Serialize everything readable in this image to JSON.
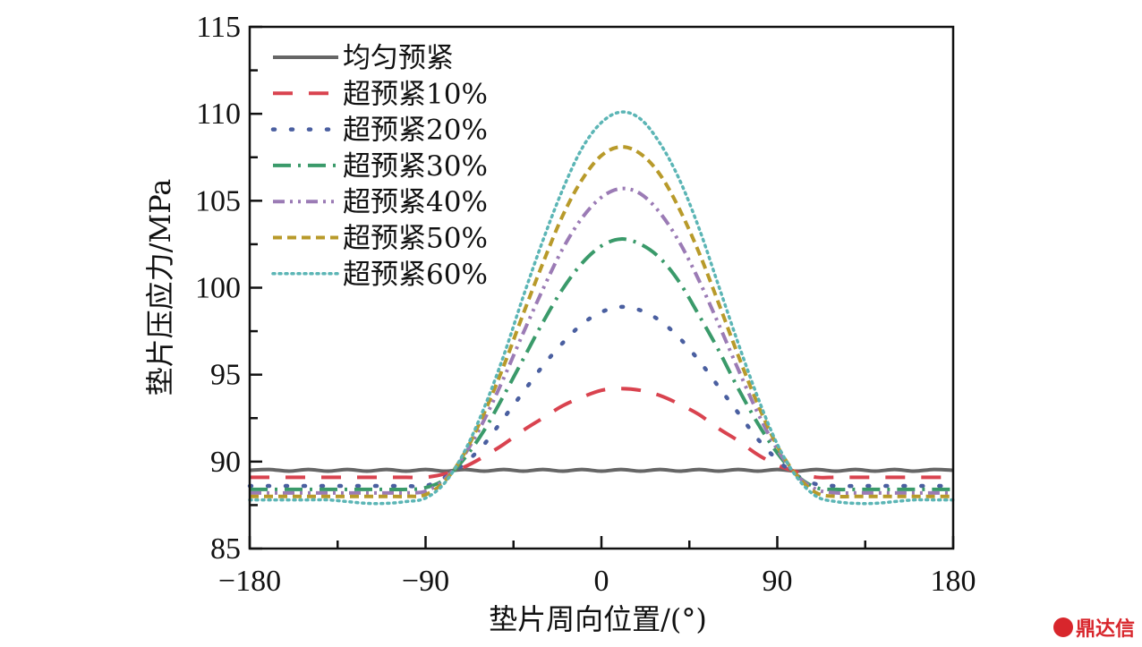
{
  "chart_data": {
    "type": "line",
    "title": "",
    "xlabel": "垫片周向位置/(°)",
    "ylabel": "垫片压应力/MPa",
    "xlim": [
      -180,
      180
    ],
    "ylim": [
      85,
      115
    ],
    "xticks": [
      -180,
      -90,
      0,
      90,
      180
    ],
    "xtick_labels": [
      "−180",
      "−90",
      "0",
      "90",
      "180"
    ],
    "xminor_step": 45,
    "yticks": [
      85,
      90,
      95,
      100,
      105,
      110,
      115
    ],
    "ytick_labels": [
      "85",
      "90",
      "95",
      "100",
      "105",
      "110",
      "115"
    ],
    "yminor_step": 2.5,
    "grid": false,
    "legend_position": "top-left",
    "x": [
      -180,
      -170,
      -160,
      -150,
      -140,
      -130,
      -120,
      -110,
      -100,
      -90,
      -80,
      -70,
      -60,
      -50,
      -40,
      -30,
      -20,
      -10,
      0,
      10,
      20,
      30,
      40,
      50,
      60,
      70,
      80,
      90,
      100,
      110,
      120,
      130,
      140,
      150,
      160,
      170,
      180
    ],
    "series": [
      {
        "name": "均匀预紧",
        "color": "#666666",
        "dash": "",
        "width": 4,
        "values": [
          89.5,
          89.55,
          89.45,
          89.55,
          89.45,
          89.55,
          89.45,
          89.55,
          89.45,
          89.55,
          89.45,
          89.55,
          89.45,
          89.55,
          89.45,
          89.55,
          89.45,
          89.55,
          89.45,
          89.55,
          89.45,
          89.55,
          89.45,
          89.55,
          89.45,
          89.55,
          89.45,
          89.55,
          89.45,
          89.55,
          89.45,
          89.55,
          89.45,
          89.55,
          89.45,
          89.55,
          89.5
        ]
      },
      {
        "name": "超预紧10%",
        "color": "#d9434f",
        "dash": "22,18",
        "width": 4,
        "values": [
          89.1,
          89.1,
          89.1,
          89.1,
          89.1,
          89.1,
          89.1,
          89.1,
          89.1,
          89.1,
          89.3,
          89.7,
          90.3,
          91.0,
          91.8,
          92.5,
          93.2,
          93.7,
          94.1,
          94.2,
          94.1,
          93.8,
          93.3,
          92.7,
          91.9,
          91.2,
          90.4,
          89.8,
          89.4,
          89.1,
          89.1,
          89.1,
          89.1,
          89.1,
          89.1,
          89.1,
          89.1
        ]
      },
      {
        "name": "超预紧20%",
        "color": "#4a5fa0",
        "dash": "2,18",
        "width": 4.5,
        "values": [
          88.6,
          88.6,
          88.6,
          88.6,
          88.6,
          88.6,
          88.6,
          88.6,
          88.6,
          88.6,
          89.1,
          89.9,
          91.0,
          92.5,
          94.0,
          95.5,
          96.8,
          97.9,
          98.6,
          98.9,
          98.7,
          98.1,
          97.1,
          95.8,
          94.3,
          92.8,
          91.3,
          90.1,
          89.2,
          88.7,
          88.6,
          88.6,
          88.6,
          88.6,
          88.6,
          88.6,
          88.6
        ]
      },
      {
        "name": "超预紧30%",
        "color": "#3a9a6a",
        "dash": "20,8,3,8",
        "width": 4,
        "values": [
          88.4,
          88.4,
          88.4,
          88.4,
          88.4,
          88.4,
          88.4,
          88.4,
          88.4,
          88.5,
          89.0,
          90.2,
          91.8,
          93.8,
          95.9,
          98.0,
          99.9,
          101.4,
          102.4,
          102.8,
          102.5,
          101.7,
          100.3,
          98.4,
          96.4,
          94.2,
          92.2,
          90.5,
          89.2,
          88.5,
          88.4,
          88.4,
          88.4,
          88.4,
          88.4,
          88.4,
          88.4
        ]
      },
      {
        "name": "超预紧40%",
        "color": "#9b7bb5",
        "dash": "13,6,3,6,3,6",
        "width": 4,
        "values": [
          88.2,
          88.2,
          88.2,
          88.2,
          88.2,
          88.2,
          88.2,
          88.2,
          88.2,
          88.3,
          89.0,
          90.4,
          92.4,
          94.8,
          97.4,
          99.9,
          102.2,
          104.0,
          105.2,
          105.7,
          105.4,
          104.3,
          102.6,
          100.4,
          97.9,
          95.3,
          92.8,
          90.7,
          89.2,
          88.4,
          88.2,
          88.2,
          88.2,
          88.2,
          88.2,
          88.2,
          88.2
        ]
      },
      {
        "name": "超预紧50%",
        "color": "#b89a2a",
        "dash": "10,6",
        "width": 4,
        "values": [
          88.0,
          88.0,
          88.0,
          88.0,
          88.0,
          88.0,
          88.0,
          88.0,
          88.0,
          88.1,
          88.9,
          90.5,
          92.8,
          95.5,
          98.5,
          101.4,
          104.1,
          106.2,
          107.6,
          108.1,
          107.7,
          106.5,
          104.5,
          102.0,
          99.1,
          96.1,
          93.3,
          90.9,
          89.2,
          88.2,
          88.0,
          88.0,
          88.0,
          88.0,
          88.0,
          88.0,
          88.0
        ]
      },
      {
        "name": "超预紧60%",
        "color": "#5bb5b5",
        "dash": "2,5",
        "width": 3.5,
        "values": [
          87.8,
          87.8,
          87.8,
          87.8,
          87.8,
          87.7,
          87.6,
          87.6,
          87.7,
          87.9,
          88.8,
          90.6,
          93.1,
          96.1,
          99.5,
          102.7,
          105.6,
          108.0,
          109.5,
          110.1,
          109.7,
          108.3,
          106.2,
          103.4,
          100.1,
          96.8,
          93.7,
          91.0,
          89.1,
          88.0,
          87.7,
          87.6,
          87.6,
          87.7,
          87.8,
          87.8,
          87.8
        ]
      }
    ]
  },
  "watermark": {
    "text": "鼎达信",
    "logo_text": "鼎"
  }
}
